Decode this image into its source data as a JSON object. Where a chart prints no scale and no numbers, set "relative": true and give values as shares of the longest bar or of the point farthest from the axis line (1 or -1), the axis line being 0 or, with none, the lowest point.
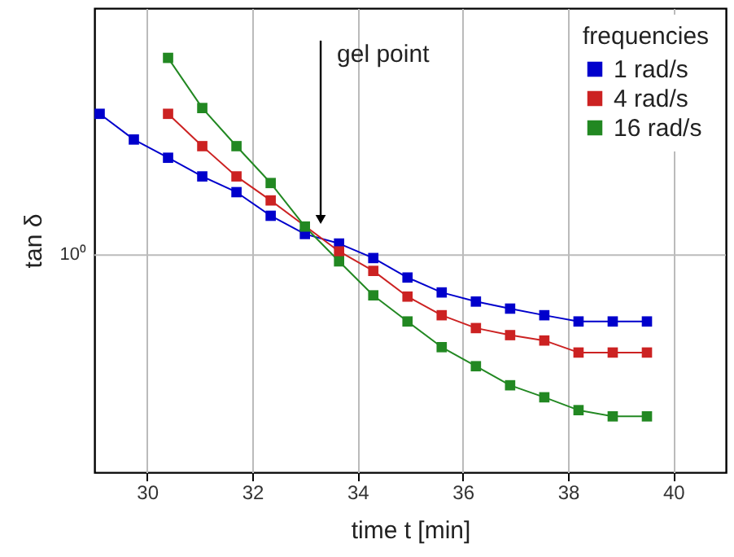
{
  "chart_data": {
    "type": "line",
    "relative": true,
    "xlabel": "time t [min]",
    "ylabel": "tan δ",
    "legend_title": "frequencies",
    "legend": "top right",
    "grid": "x",
    "marker": "square",
    "line_style": "solid",
    "xlim": [
      29,
      41
    ],
    "xticks": [
      30,
      32,
      34,
      36,
      38,
      40
    ],
    "ref_lines": [
      {
        "axis": "y",
        "value": 0.524,
        "label": "10⁰",
        "color": "#bbbbbb"
      }
    ],
    "annotations": [
      {
        "text": "gel point",
        "x": 33.3,
        "y": 0.61
      }
    ],
    "series": [
      {
        "name": "1 rad/s",
        "color": "#0000cc",
        "x": [
          29.1,
          29.75,
          30.4,
          31.05,
          31.7,
          32.35,
          33.0,
          33.65,
          34.3,
          34.95,
          35.6,
          36.25,
          36.9,
          37.55,
          38.2,
          38.85,
          39.5
        ],
        "values": [
          0.865,
          0.803,
          0.759,
          0.714,
          0.676,
          0.619,
          0.575,
          0.552,
          0.517,
          0.47,
          0.434,
          0.412,
          0.395,
          0.379,
          0.364,
          0.364,
          0.364
        ]
      },
      {
        "name": "4 rad/s",
        "color": "#cc2222",
        "x": [
          30.4,
          31.05,
          31.7,
          32.35,
          33.0,
          33.65,
          34.3,
          34.95,
          35.6,
          36.25,
          36.9,
          37.55,
          38.2,
          38.85,
          39.5
        ],
        "values": [
          0.865,
          0.787,
          0.714,
          0.656,
          null,
          0.533,
          0.486,
          0.424,
          0.379,
          0.348,
          0.331,
          0.318,
          0.289,
          0.289,
          0.289
        ]
      },
      {
        "name": "16 rad/s",
        "color": "#228822",
        "x": [
          30.4,
          31.05,
          31.7,
          32.35,
          33.0,
          33.65,
          34.3,
          34.95,
          35.6,
          36.25,
          36.9,
          37.55,
          38.2,
          38.85,
          39.5
        ],
        "values": [
          1.0,
          0.879,
          0.787,
          0.698,
          0.593,
          0.509,
          0.427,
          0.364,
          0.302,
          0.256,
          0.21,
          0.181,
          0.15,
          0.135,
          0.135
        ]
      }
    ]
  }
}
